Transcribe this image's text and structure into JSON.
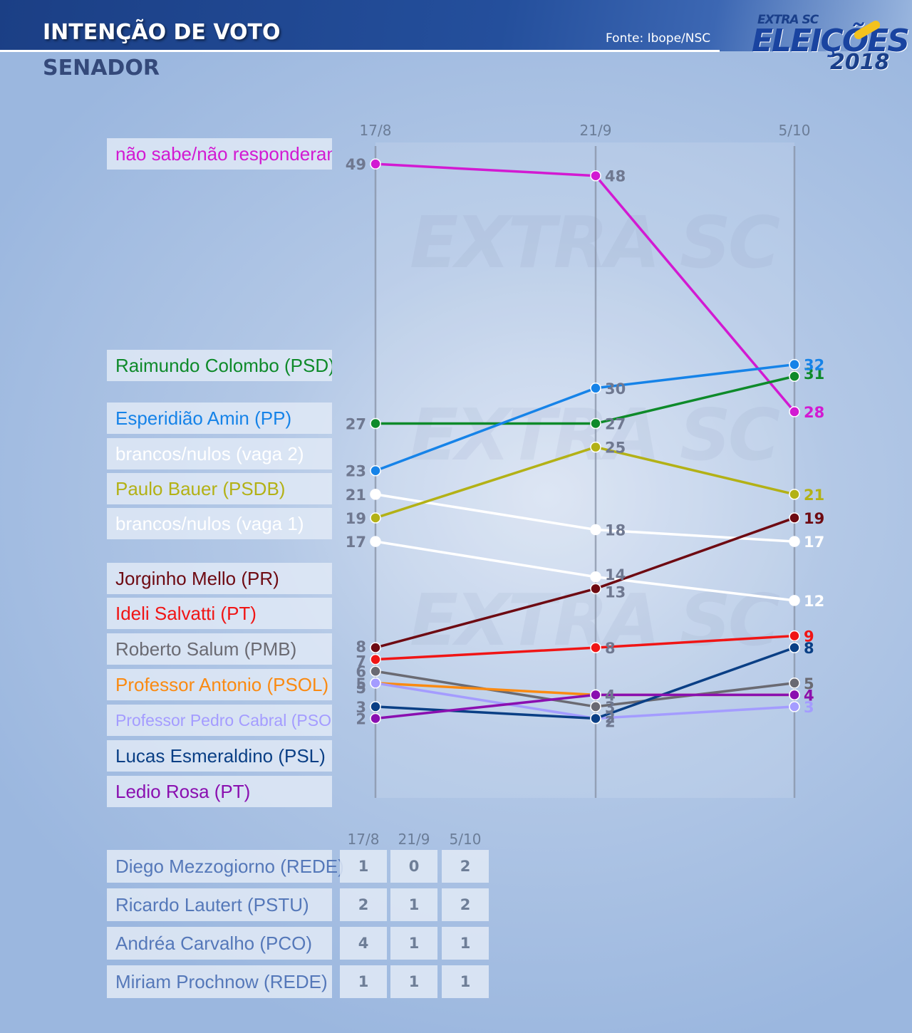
{
  "header": {
    "title": "INTENÇÃO DE VOTO",
    "subtitle": "SENADOR",
    "source": "Fonte: Ibope/NSC",
    "logo_text_top": "EXTRA SC",
    "logo_text_main": "ELEIÇÕES",
    "logo_text_year": "2018",
    "watermark": "EXTRA SC"
  },
  "chart_data": {
    "type": "line",
    "x": [
      "17/8",
      "21/9",
      "5/10"
    ],
    "ylim": [
      0,
      50
    ],
    "grid": true,
    "legend": "left",
    "series": [
      {
        "name": "não sabe/não responderam",
        "color": "#d21ad2",
        "values": [
          49,
          48,
          28
        ]
      },
      {
        "name": "Raimundo Colombo (PSD)",
        "color": "#0e8a2a",
        "values": [
          27,
          27,
          31
        ]
      },
      {
        "name": "Esperidião Amin (PP)",
        "color": "#1683e8",
        "values": [
          23,
          30,
          32
        ]
      },
      {
        "name": "brancos/nulos (vaga 2)",
        "color": "#ffffff",
        "values": [
          21,
          18,
          17
        ]
      },
      {
        "name": "Paulo Bauer (PSDB)",
        "color": "#b3b116",
        "values": [
          19,
          25,
          21
        ]
      },
      {
        "name": "brancos/nulos (vaga 1)",
        "color": "#ffffff",
        "values": [
          17,
          14,
          12
        ]
      },
      {
        "name": "Jorginho Mello (PR)",
        "color": "#6e0a12",
        "values": [
          8,
          13,
          19
        ]
      },
      {
        "name": "Ideli Salvatti (PT)",
        "color": "#f01515",
        "values": [
          7,
          8,
          9
        ]
      },
      {
        "name": "Roberto Salum (PMB)",
        "color": "#6a6a72",
        "values": [
          6,
          3,
          5
        ]
      },
      {
        "name": "Professor Antonio (PSOL)",
        "color": "#fa8a12",
        "values": [
          5,
          4,
          4
        ]
      },
      {
        "name": "Professor Pedro Cabral (PSOL)",
        "color": "#a49cff",
        "values": [
          5,
          2,
          3
        ]
      },
      {
        "name": "Lucas Esmeraldino (PSL)",
        "color": "#0a3f85",
        "values": [
          3,
          2,
          8
        ]
      },
      {
        "name": "Ledio Rosa (PT)",
        "color": "#8a0fb0",
        "values": [
          2,
          4,
          4
        ]
      }
    ]
  },
  "others_table": {
    "columns": [
      "17/8",
      "21/9",
      "5/10"
    ],
    "rows": [
      {
        "name": "Diego Mezzogiorno (REDE)",
        "values": [
          "1",
          "0",
          "2"
        ]
      },
      {
        "name": "Ricardo Lautert (PSTU)",
        "values": [
          "2",
          "1",
          "2"
        ]
      },
      {
        "name": "Andréa Carvalho (PCO)",
        "values": [
          "4",
          "1",
          "1"
        ]
      },
      {
        "name": "Miriam Prochnow (REDE)",
        "values": [
          "1",
          "1",
          "1"
        ]
      }
    ]
  }
}
